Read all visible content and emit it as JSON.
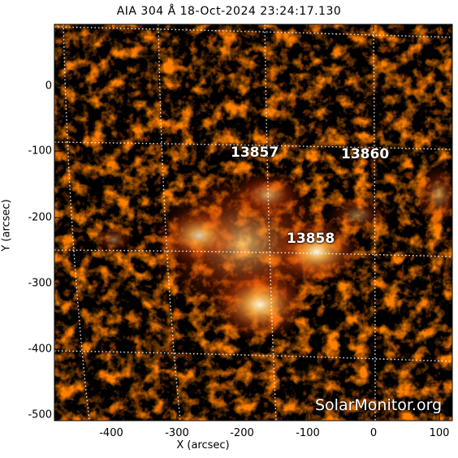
{
  "title": "AIA 304 Å 18-Oct-2024 23:24:17.130",
  "x_axis": {
    "label": "X (arcsec)",
    "ticks": [
      "-400",
      "-300",
      "-200",
      "-100",
      "0",
      "100"
    ]
  },
  "y_axis": {
    "label": "Y (arcsec)",
    "ticks": [
      "0",
      "-100",
      "-200",
      "-300",
      "-400",
      "-500"
    ]
  },
  "regions": [
    {
      "id": "13857",
      "label": "13857"
    },
    {
      "id": "13860",
      "label": "13860"
    },
    {
      "id": "13858",
      "label": "13858"
    }
  ],
  "watermark": "SolarMonitor.org",
  "colors": {
    "background": "#000000",
    "plasma_mid": "#b22a00",
    "plasma_bright": "#ffd27a",
    "grid": "#ffffff"
  }
}
